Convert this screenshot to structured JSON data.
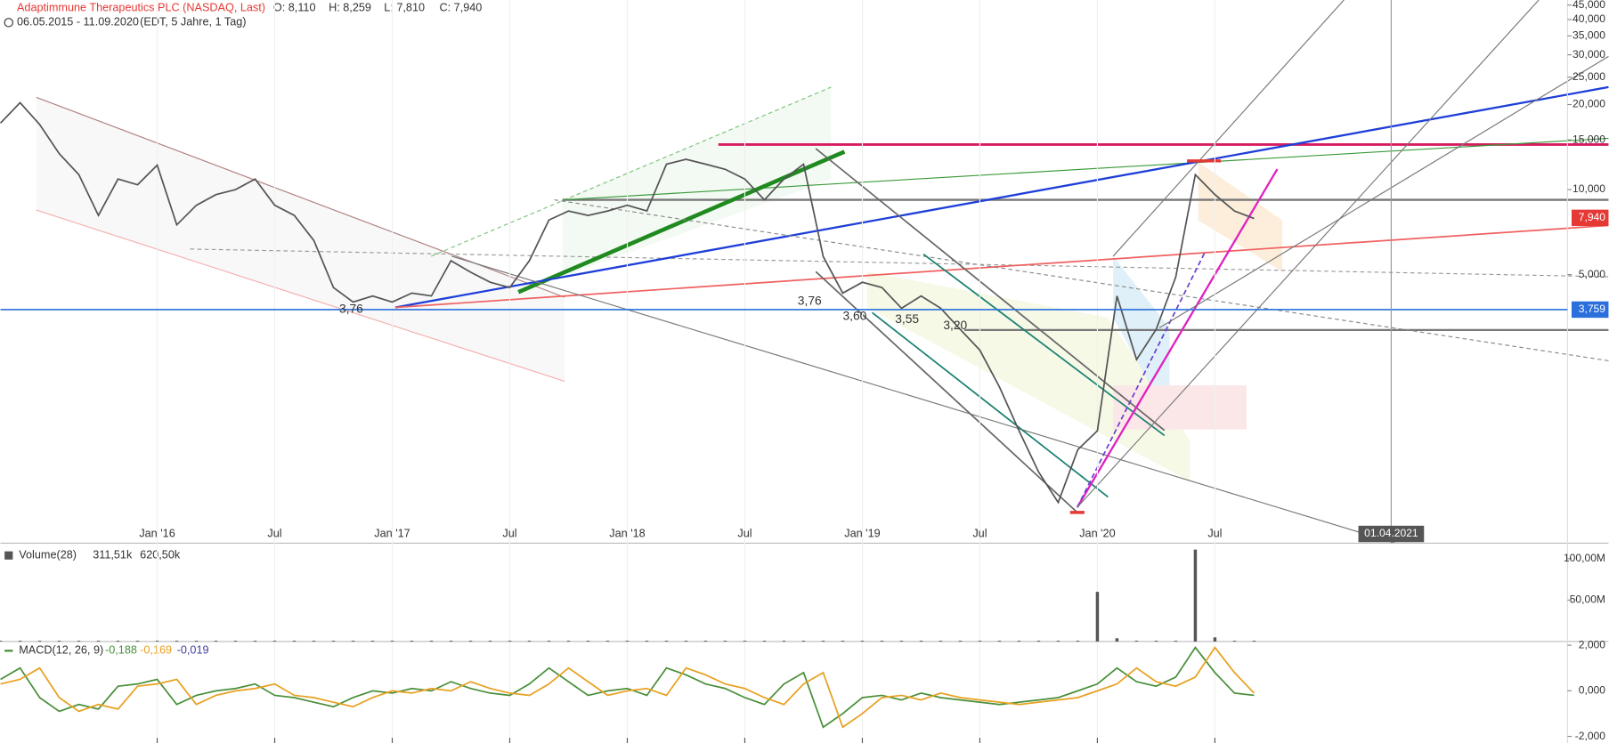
{
  "chart_data": [
    {
      "type": "line",
      "title": "Adaptimmune Therapeutics PLC (NASDAQ, Last)",
      "quote": [
        "O: 8,110",
        "H: 8,259",
        "L: 7,810",
        "C: 7,940"
      ],
      "subtitle": "06.05.2015 - 11.09.2020",
      "subtitle2": "(EDT, 5 Jahre, 1 Tag)",
      "x": [
        "2015-05",
        "2015-06",
        "2015-07",
        "2015-08",
        "2015-09",
        "2015-10",
        "2015-11",
        "2015-12",
        "2016-01",
        "2016-02",
        "2016-03",
        "2016-04",
        "2016-05",
        "2016-06",
        "2016-07",
        "2016-08",
        "2016-09",
        "2016-10",
        "2016-11",
        "2016-12",
        "2017-01",
        "2017-02",
        "2017-03",
        "2017-04",
        "2017-05",
        "2017-06",
        "2017-07",
        "2017-08",
        "2017-09",
        "2017-10",
        "2017-11",
        "2017-12",
        "2018-01",
        "2018-02",
        "2018-03",
        "2018-04",
        "2018-05",
        "2018-06",
        "2018-07",
        "2018-08",
        "2018-09",
        "2018-10",
        "2018-11",
        "2018-12",
        "2019-01",
        "2019-02",
        "2019-03",
        "2019-04",
        "2019-05",
        "2019-06",
        "2019-07",
        "2019-08",
        "2019-09",
        "2019-10",
        "2019-11",
        "2019-12",
        "2020-01",
        "2020-02",
        "2020-03",
        "2020-04",
        "2020-05",
        "2020-06",
        "2020-07",
        "2020-08",
        "2020-09"
      ],
      "series": [
        {
          "color": "#555555",
          "values": [
            17.2,
            20.3,
            17,
            13.4,
            11.3,
            8.1,
            10.9,
            10.4,
            12.2,
            7.5,
            8.8,
            9.6,
            10,
            10.9,
            8.8,
            8.1,
            6.6,
            4.5,
            4,
            4.2,
            4,
            4.3,
            4.2,
            5.6,
            5.1,
            4.7,
            4.5,
            5.6,
            7.8,
            8.4,
            8.1,
            8.4,
            8.8,
            8.4,
            12.3,
            12.8,
            12.3,
            11.8,
            10.9,
            9.2,
            10.9,
            12.3,
            5.8,
            4.3,
            4.7,
            4.5,
            3.8,
            4.2,
            3.8,
            3.2,
            2.7,
            2,
            1.4,
            1,
            0.78,
            1.2,
            1.4,
            4.2,
            2.5,
            3.2,
            4.9,
            11.3,
            9.6,
            8.4,
            7.9
          ]
        }
      ],
      "log_scale": true,
      "ylim": [
        0.56,
        46.9
      ],
      "yticks": [
        {
          "value": 5,
          "label": "5,000"
        },
        {
          "value": 10,
          "label": "10,000"
        },
        {
          "value": 15,
          "label": "15,000"
        },
        {
          "value": 20,
          "label": "20,000"
        },
        {
          "value": 25,
          "label": "25,000"
        },
        {
          "value": 30,
          "label": "30,000"
        },
        {
          "value": 35,
          "label": "35,000"
        },
        {
          "value": 40,
          "label": "40,000"
        },
        {
          "value": 45,
          "label": "45,000"
        }
      ],
      "xlim": [
        "2015-05",
        "2022-01"
      ],
      "xticks": [
        {
          "value": "2016-01",
          "label": "Jan '16"
        },
        {
          "value": "2016-07",
          "label": "Jul"
        },
        {
          "value": "2017-01",
          "label": "Jan '17"
        },
        {
          "value": "2017-07",
          "label": "Jul"
        },
        {
          "value": "2018-01",
          "label": "Jan '18"
        },
        {
          "value": "2018-07",
          "label": "Jul"
        },
        {
          "value": "2019-01",
          "label": "Jan '19"
        },
        {
          "value": "2019-07",
          "label": "Jul"
        },
        {
          "value": "2020-01",
          "label": "Jan '20"
        },
        {
          "value": "2020-07",
          "label": "Jul"
        }
      ],
      "price_tags": [
        {
          "value": 7.94,
          "label": "7,940",
          "color": "#e53935"
        },
        {
          "value": 3.759,
          "label": "3,759",
          "color": "#2a6fdb"
        }
      ],
      "annotations": [
        "3,76",
        "3,76",
        "3,60",
        "3,55",
        "3,20"
      ],
      "marker": {
        "value": "2021-04",
        "label": "01.04.2021"
      }
    },
    {
      "type": "bar",
      "title": "Volume(28)",
      "legend_values": [
        "311,51k",
        "620,50k"
      ],
      "color": "#555555",
      "values": [
        1,
        1,
        1,
        1,
        1,
        1,
        1,
        1,
        1,
        1,
        1,
        1,
        1,
        1,
        1,
        1,
        1,
        1,
        1,
        1,
        1,
        1,
        1,
        1,
        1,
        1,
        1,
        1,
        1,
        1,
        1,
        1,
        1,
        1,
        1,
        1,
        1,
        1,
        1,
        1,
        1,
        1,
        1,
        1,
        1,
        1,
        1,
        1,
        1,
        1,
        1,
        1,
        1,
        1,
        1,
        1,
        60,
        4,
        1,
        1,
        1,
        111,
        5,
        1,
        1
      ],
      "ylim": [
        0,
        115
      ],
      "yticks": [
        {
          "value": 50,
          "label": "50,00M"
        },
        {
          "value": 100,
          "label": "100,00M"
        }
      ]
    },
    {
      "type": "line",
      "title": "MACD(12, 26, 9)",
      "legend_values": [
        "-0,188",
        "-0,169",
        "-0,019"
      ],
      "series": [
        {
          "color": "#4a8f3a",
          "values": [
            0.5,
            1.0,
            -0.3,
            -0.9,
            -0.6,
            -0.8,
            0.2,
            0.3,
            0.5,
            -0.6,
            -0.2,
            0.0,
            0.1,
            0.3,
            -0.2,
            -0.3,
            -0.5,
            -0.7,
            -0.3,
            0.0,
            -0.1,
            0.1,
            0.0,
            0.4,
            0.1,
            -0.1,
            -0.2,
            0.3,
            1.0,
            0.4,
            -0.2,
            0.0,
            0.1,
            -0.2,
            1.0,
            0.7,
            0.3,
            0.1,
            -0.3,
            -0.6,
            0.3,
            0.8,
            -1.6,
            -1.0,
            -0.3,
            -0.2,
            -0.4,
            -0.1,
            -0.3,
            -0.4,
            -0.5,
            -0.6,
            -0.5,
            -0.4,
            -0.3,
            0.0,
            0.3,
            1.0,
            0.4,
            0.2,
            0.6,
            1.9,
            0.8,
            -0.1,
            -0.2
          ]
        },
        {
          "color": "#e8a020",
          "values": [
            0.3,
            0.5,
            1.0,
            -0.3,
            -0.9,
            -0.6,
            -0.8,
            0.2,
            0.3,
            0.5,
            -0.6,
            -0.2,
            0.0,
            0.1,
            0.3,
            -0.2,
            -0.3,
            -0.5,
            -0.7,
            -0.3,
            0.0,
            -0.1,
            0.1,
            0.0,
            0.4,
            0.1,
            -0.1,
            -0.2,
            0.3,
            1.0,
            0.4,
            -0.2,
            0.0,
            0.1,
            -0.2,
            1.0,
            0.7,
            0.3,
            0.1,
            -0.3,
            -0.6,
            0.3,
            0.8,
            -1.6,
            -1.0,
            -0.3,
            -0.2,
            -0.4,
            -0.1,
            -0.3,
            -0.4,
            -0.5,
            -0.6,
            -0.5,
            -0.4,
            -0.3,
            0.0,
            0.3,
            1.0,
            0.4,
            0.2,
            0.6,
            1.9,
            0.8,
            -0.1
          ]
        }
      ],
      "ylim": [
        -2.29,
        2.16
      ],
      "yticks": [
        {
          "value": 2,
          "label": "2,000"
        },
        {
          "value": 0,
          "label": "0,000"
        },
        {
          "value": -2,
          "label": "-2,000"
        }
      ]
    }
  ]
}
